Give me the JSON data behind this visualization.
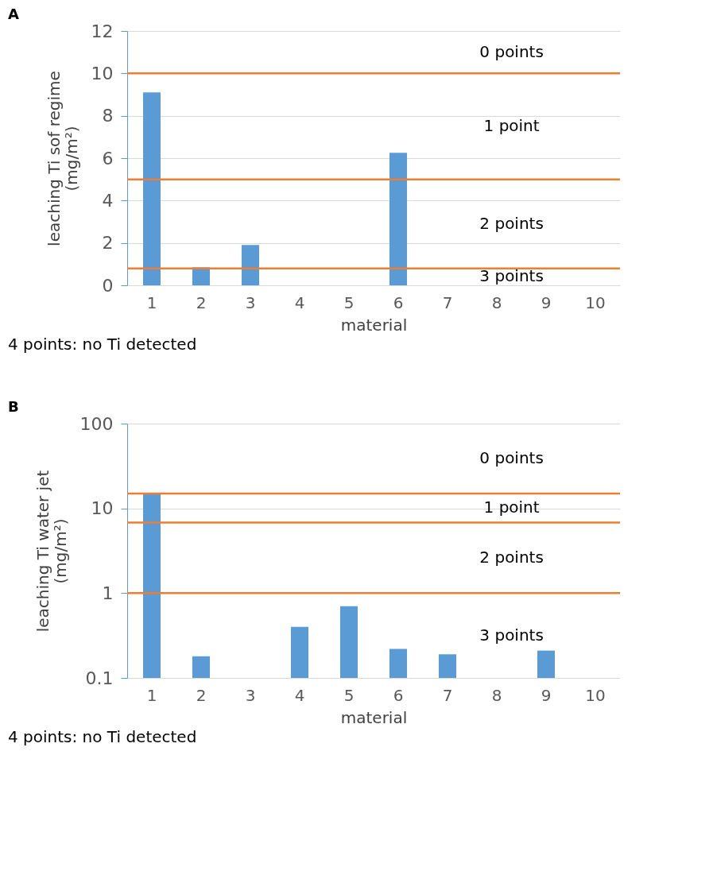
{
  "chart_data": [
    {
      "type": "bar",
      "title": "A",
      "xlabel": "material",
      "ylabel": "leaching Ti sof regime\n(mg/m²)",
      "categories": [
        "1",
        "2",
        "3",
        "4",
        "5",
        "6",
        "7",
        "8",
        "9",
        "10"
      ],
      "series": [
        {
          "color": "#5b9bd5",
          "values": [
            9.1,
            0.85,
            1.9,
            null,
            null,
            6.25,
            null,
            null,
            null,
            null
          ]
        }
      ],
      "ylim": [
        0,
        12
      ],
      "yticks": [
        0,
        2,
        4,
        6,
        8,
        10,
        12
      ],
      "grid": "y",
      "ref_lines": [
        {
          "axis": "y",
          "value": 10,
          "color": "#ed7d31"
        },
        {
          "axis": "y",
          "value": 5,
          "color": "#ed7d31"
        },
        {
          "axis": "y",
          "value": 0.8,
          "color": "#ed7d31"
        }
      ],
      "annotations": [
        "0 points",
        "1 point",
        "2 points",
        "3 points",
        "4 points: no Ti detected"
      ]
    },
    {
      "type": "bar",
      "title": "B",
      "xlabel": "material",
      "ylabel": "leaching Ti water jet\n(mg/m²)",
      "categories": [
        "1",
        "2",
        "3",
        "4",
        "5",
        "6",
        "7",
        "8",
        "9",
        "10"
      ],
      "series": [
        {
          "color": "#5b9bd5",
          "values": [
            15,
            0.18,
            null,
            0.4,
            0.7,
            0.22,
            0.19,
            null,
            0.21,
            null
          ]
        }
      ],
      "log": "y",
      "ylim": [
        0.1,
        100
      ],
      "yticks": [
        0.1,
        1,
        10,
        100
      ],
      "grid": "y",
      "ref_lines": [
        {
          "axis": "y",
          "value": 15,
          "color": "#ed7d31"
        },
        {
          "axis": "y",
          "value": 6.8,
          "color": "#ed7d31"
        },
        {
          "axis": "y",
          "value": 1,
          "color": "#ed7d31"
        }
      ],
      "annotations": [
        "0 points",
        "1 point",
        "2 points",
        "3 points",
        "4 points: no Ti detected"
      ]
    }
  ]
}
